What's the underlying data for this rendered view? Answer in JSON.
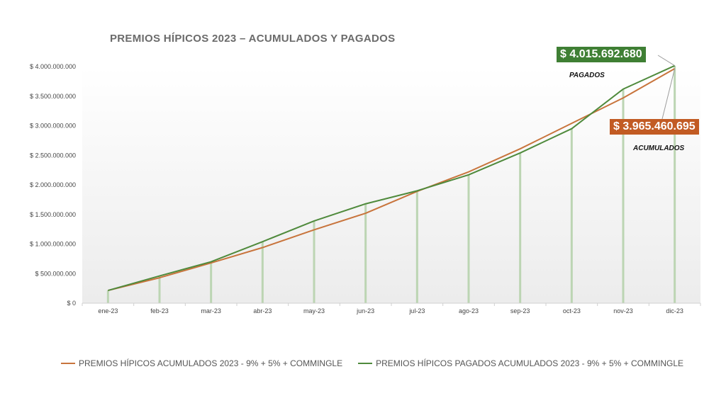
{
  "title": "PREMIOS  HÍPICOS  2023  – ACUMULADOS  Y  PAGADOS",
  "colors": {
    "accumulated": "#c8743c",
    "paid": "#4f8a3c",
    "drop_lines": "#bcd5b3",
    "callout_paid_bg": "#3f7f34",
    "callout_accum_bg": "#c25b23"
  },
  "callouts": {
    "paid_value": "$ 4.015.692.680",
    "paid_label": "PAGADOS",
    "accum_value": "$ 3.965.460.695",
    "accum_label": "ACUMULADOS"
  },
  "chart_data": {
    "type": "line",
    "categories": [
      "ene-23",
      "feb-23",
      "mar-23",
      "abr-23",
      "may-23",
      "jun-23",
      "jul-23",
      "ago-23",
      "sep-23",
      "oct-23",
      "nov-23",
      "dic-23"
    ],
    "series": [
      {
        "name": "PREMIOS HÍPICOS ACUMULADOS 2023 - 9% + 5% + COMMINGLE",
        "values": [
          215000000,
          430000000,
          680000000,
          940000000,
          1240000000,
          1520000000,
          1890000000,
          2220000000,
          2610000000,
          3040000000,
          3470000000,
          3965460695
        ]
      },
      {
        "name": "PREMIOS HÍPICOS PAGADOS ACUMULADOS 2023 - 9% + 5% + COMMINGLE",
        "values": [
          215000000,
          460000000,
          700000000,
          1040000000,
          1390000000,
          1680000000,
          1900000000,
          2170000000,
          2540000000,
          2950000000,
          3620000000,
          4015692680
        ]
      }
    ],
    "ylim": [
      0,
      4000000000
    ],
    "yticks": [
      0,
      500000000,
      1000000000,
      1500000000,
      2000000000,
      2500000000,
      3000000000,
      3500000000,
      4000000000
    ],
    "ytick_labels": [
      "$ 0",
      "$ 500.000.000",
      "$ 1.000.000.000",
      "$ 1.500.000.000",
      "$ 2.000.000.000",
      "$ 2.500.000.000",
      "$ 3.000.000.000",
      "$ 3.500.000.000",
      "$ 4.000.000.000"
    ],
    "drop_lines_series": 1,
    "grid": false,
    "legend_position": "bottom"
  }
}
